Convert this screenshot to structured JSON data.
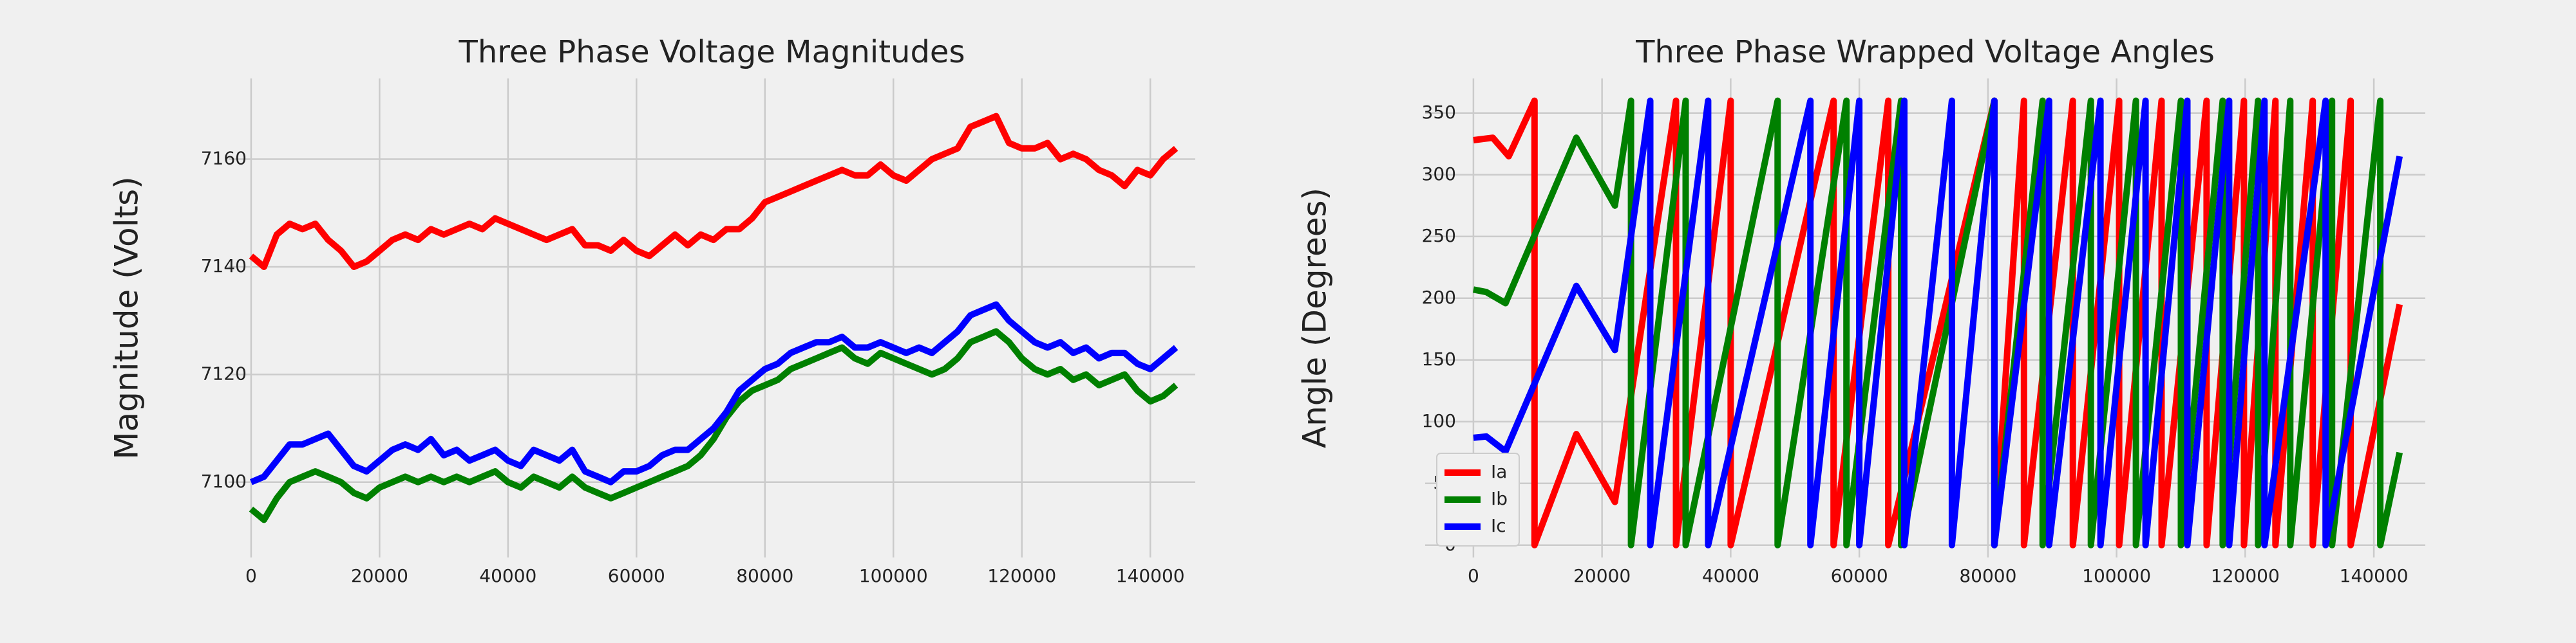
{
  "chart_data": [
    {
      "type": "line",
      "title": "Three Phase Voltage Magnitudes",
      "ylabel": "Magnitude (Volts)",
      "x": [
        0,
        2000,
        4000,
        6000,
        8000,
        10000,
        12000,
        14000,
        16000,
        18000,
        20000,
        22000,
        24000,
        26000,
        28000,
        30000,
        32000,
        34000,
        36000,
        38000,
        40000,
        42000,
        44000,
        46000,
        48000,
        50000,
        52000,
        54000,
        56000,
        58000,
        60000,
        62000,
        64000,
        66000,
        68000,
        70000,
        72000,
        74000,
        76000,
        78000,
        80000,
        82000,
        84000,
        86000,
        88000,
        90000,
        92000,
        94000,
        96000,
        98000,
        100000,
        102000,
        104000,
        106000,
        108000,
        110000,
        112000,
        114000,
        116000,
        118000,
        120000,
        122000,
        124000,
        126000,
        128000,
        130000,
        132000,
        134000,
        136000,
        138000,
        140000,
        142000,
        144000
      ],
      "series": [
        {
          "color": "#ff0000",
          "values": [
            7142,
            7140,
            7146,
            7148,
            7147,
            7148,
            7145,
            7143,
            7140,
            7141,
            7143,
            7145,
            7146,
            7145,
            7147,
            7146,
            7147,
            7148,
            7147,
            7149,
            7148,
            7147,
            7146,
            7145,
            7146,
            7147,
            7144,
            7144,
            7143,
            7145,
            7143,
            7142,
            7144,
            7146,
            7144,
            7146,
            7145,
            7147,
            7147,
            7149,
            7152,
            7153,
            7154,
            7155,
            7156,
            7157,
            7158,
            7157,
            7157,
            7159,
            7157,
            7156,
            7158,
            7160,
            7161,
            7162,
            7166,
            7167,
            7168,
            7163,
            7162,
            7162,
            7163,
            7160,
            7161,
            7160,
            7158,
            7157,
            7155,
            7158,
            7157,
            7160,
            7162
          ]
        },
        {
          "color": "#008000",
          "values": [
            7095,
            7093,
            7097,
            7100,
            7101,
            7102,
            7101,
            7100,
            7098,
            7097,
            7099,
            7100,
            7101,
            7100,
            7101,
            7100,
            7101,
            7100,
            7101,
            7102,
            7100,
            7099,
            7101,
            7100,
            7099,
            7101,
            7099,
            7098,
            7097,
            7098,
            7099,
            7100,
            7101,
            7102,
            7103,
            7105,
            7108,
            7112,
            7115,
            7117,
            7118,
            7119,
            7121,
            7122,
            7123,
            7124,
            7125,
            7123,
            7122,
            7124,
            7123,
            7122,
            7121,
            7120,
            7121,
            7123,
            7126,
            7127,
            7128,
            7126,
            7123,
            7121,
            7120,
            7121,
            7119,
            7120,
            7118,
            7119,
            7120,
            7117,
            7115,
            7116,
            7118
          ]
        },
        {
          "color": "#0000ff",
          "values": [
            7100,
            7101,
            7104,
            7107,
            7107,
            7108,
            7109,
            7106,
            7103,
            7102,
            7104,
            7106,
            7107,
            7106,
            7108,
            7105,
            7106,
            7104,
            7105,
            7106,
            7104,
            7103,
            7106,
            7105,
            7104,
            7106,
            7102,
            7101,
            7100,
            7102,
            7102,
            7103,
            7105,
            7106,
            7106,
            7108,
            7110,
            7113,
            7117,
            7119,
            7121,
            7122,
            7124,
            7125,
            7126,
            7126,
            7127,
            7125,
            7125,
            7126,
            7125,
            7124,
            7125,
            7124,
            7126,
            7128,
            7131,
            7132,
            7133,
            7130,
            7128,
            7126,
            7125,
            7126,
            7124,
            7125,
            7123,
            7124,
            7124,
            7122,
            7121,
            7123,
            7125
          ]
        }
      ],
      "xlim": [
        -3500,
        147000
      ],
      "ylim": [
        7086,
        7175
      ],
      "xticks": [
        0,
        20000,
        40000,
        60000,
        80000,
        100000,
        120000,
        140000
      ],
      "yticks": [
        7100,
        7120,
        7140,
        7160
      ],
      "grid": true
    },
    {
      "type": "line",
      "title": "Three Phase Wrapped Voltage Angles",
      "ylabel": "Angle (Degrees)",
      "series": [
        {
          "name": "Ia",
          "color": "#ff0000",
          "x": [
            0,
            3000,
            5500,
            9500,
            9500,
            16000,
            22000,
            31500,
            31500,
            40000,
            40000,
            56000,
            56000,
            64500,
            64500,
            81000,
            81000,
            85600,
            85600,
            93200,
            93200,
            100400,
            100400,
            107000,
            107000,
            114000,
            114000,
            119800,
            119800,
            124700,
            124700,
            130500,
            130500,
            136400,
            136400,
            144000
          ],
          "values": [
            328,
            330,
            315,
            360,
            0,
            90,
            35,
            360,
            0,
            360,
            0,
            360,
            0,
            360,
            0,
            360,
            0,
            360,
            0,
            360,
            0,
            360,
            0,
            360,
            0,
            360,
            0,
            360,
            0,
            360,
            0,
            360,
            0,
            360,
            0,
            195
          ]
        },
        {
          "name": "Ib",
          "color": "#008000",
          "x": [
            0,
            2000,
            5000,
            16000,
            22000,
            24500,
            24500,
            33000,
            33000,
            47300,
            47300,
            58000,
            58000,
            66500,
            66500,
            81000,
            81000,
            88500,
            88500,
            96000,
            96000,
            103000,
            103000,
            110000,
            110000,
            116500,
            116500,
            122000,
            122000,
            127000,
            127000,
            133500,
            133500,
            141000,
            141000,
            144000
          ],
          "values": [
            207,
            205,
            196,
            330,
            275,
            360,
            0,
            360,
            0,
            360,
            0,
            360,
            0,
            360,
            0,
            360,
            0,
            360,
            0,
            360,
            0,
            360,
            0,
            360,
            0,
            360,
            0,
            360,
            0,
            360,
            0,
            360,
            0,
            360,
            0,
            75
          ]
        },
        {
          "name": "Ic",
          "color": "#0000ff",
          "x": [
            0,
            2000,
            5000,
            16000,
            22000,
            27500,
            27500,
            36500,
            36500,
            52400,
            52400,
            60000,
            60000,
            67000,
            67000,
            74400,
            74400,
            81000,
            81000,
            89500,
            89500,
            97500,
            97500,
            104500,
            104500,
            111000,
            111000,
            117500,
            117500,
            123000,
            123000,
            132500,
            132500,
            144000
          ],
          "values": [
            87,
            88,
            76,
            210,
            158,
            360,
            0,
            360,
            0,
            360,
            0,
            360,
            0,
            360,
            0,
            360,
            0,
            360,
            0,
            360,
            0,
            360,
            0,
            360,
            0,
            360,
            0,
            360,
            0,
            360,
            0,
            360,
            0,
            315
          ]
        }
      ],
      "xlim": [
        -7500,
        148000
      ],
      "ylim": [
        -10,
        378
      ],
      "xticks": [
        0,
        20000,
        40000,
        60000,
        80000,
        100000,
        120000,
        140000
      ],
      "yticks": [
        0,
        50,
        100,
        150,
        200,
        250,
        300,
        350
      ],
      "grid": true,
      "legend": "lower left"
    }
  ]
}
